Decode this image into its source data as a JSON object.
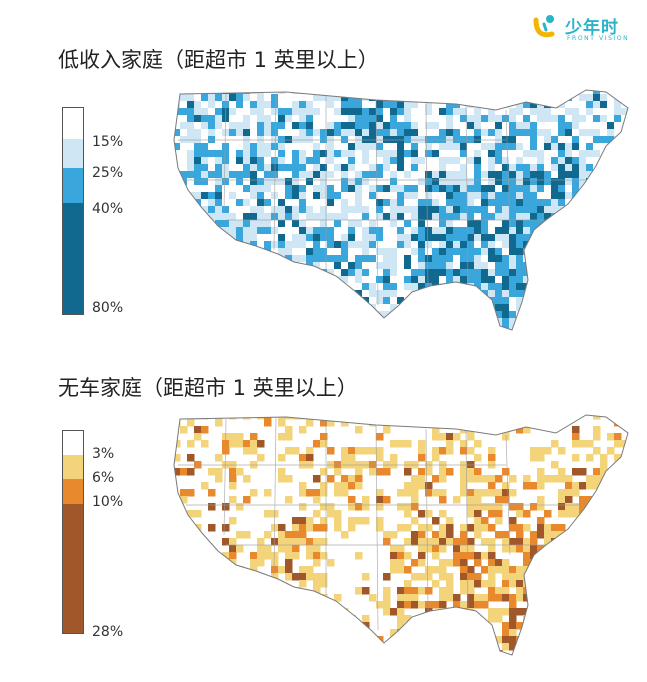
{
  "logo": {
    "name": "少年时",
    "tagline": "FRONT VISION",
    "color": "#2ab3c9"
  },
  "maps": [
    {
      "id": "low-income",
      "title": "低收入家庭（距超市 1 英里以上）",
      "legend": {
        "ticks": [
          "15%",
          "25%",
          "40%",
          "80%"
        ],
        "bands": [
          {
            "range": [
              0,
              15
            ],
            "color": "#ffffff"
          },
          {
            "range": [
              15,
              25
            ],
            "color": "#cfe6f4"
          },
          {
            "range": [
              25,
              40
            ],
            "color": "#3aa7dc"
          },
          {
            "range": [
              40,
              80
            ],
            "color": "#12698f"
          }
        ]
      }
    },
    {
      "id": "no-car",
      "title": "无车家庭（距超市 1 英里以上）",
      "legend": {
        "ticks": [
          "3%",
          "6%",
          "10%",
          "28%"
        ],
        "bands": [
          {
            "range": [
              0,
              3
            ],
            "color": "#ffffff"
          },
          {
            "range": [
              3,
              6
            ],
            "color": "#f3d47a"
          },
          {
            "range": [
              6,
              10
            ],
            "color": "#e9892e"
          },
          {
            "range": [
              10,
              28
            ],
            "color": "#a0572a"
          }
        ]
      }
    }
  ]
}
